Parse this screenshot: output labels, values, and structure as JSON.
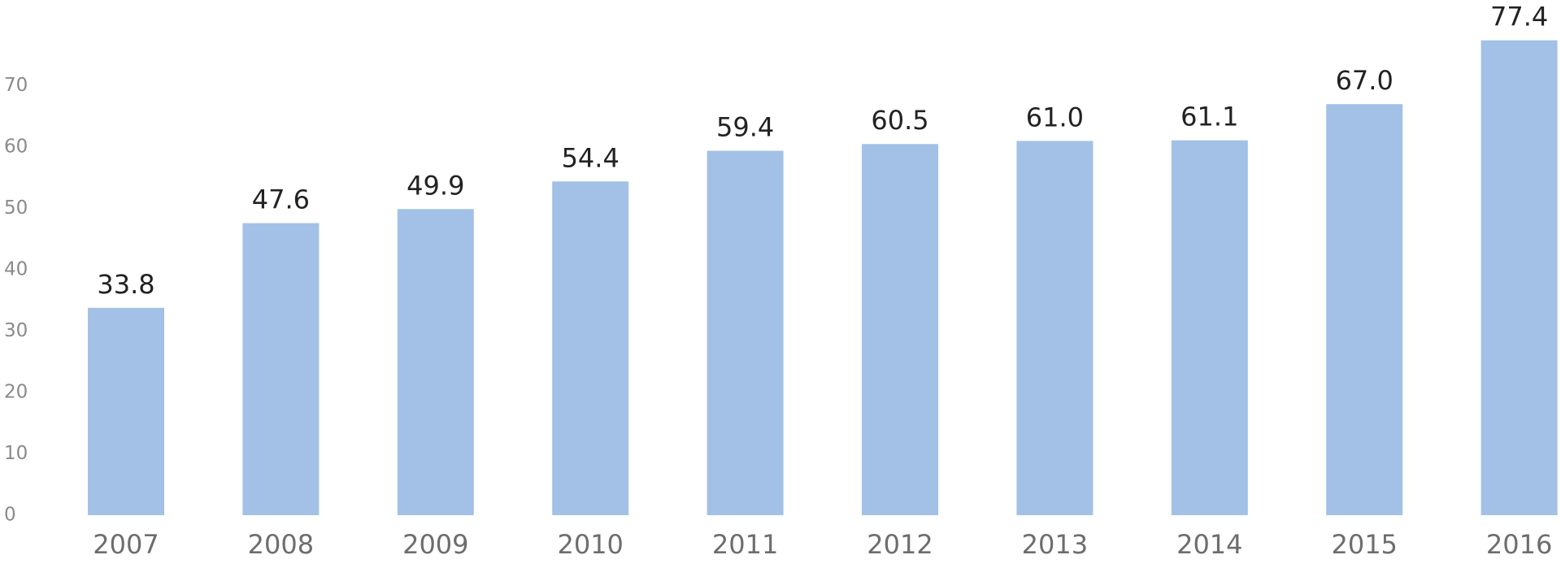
{
  "chart_data": {
    "type": "bar",
    "categories": [
      "2007",
      "2008",
      "2009",
      "2010",
      "2011",
      "2012",
      "2013",
      "2014",
      "2015",
      "2016"
    ],
    "values": [
      33.8,
      47.6,
      49.9,
      54.4,
      59.4,
      60.5,
      61.0,
      61.1,
      67.0,
      77.4
    ],
    "value_labels": [
      "33.8",
      "47.6",
      "49.9",
      "54.4",
      "59.4",
      "60.5",
      "61.0",
      "61.1",
      "67.0",
      "77.4"
    ],
    "color": "#a3c1e6",
    "ylim": [
      0,
      80
    ],
    "yticks": [
      0,
      10,
      20,
      30,
      40,
      50,
      60,
      70
    ],
    "grid": false
  }
}
